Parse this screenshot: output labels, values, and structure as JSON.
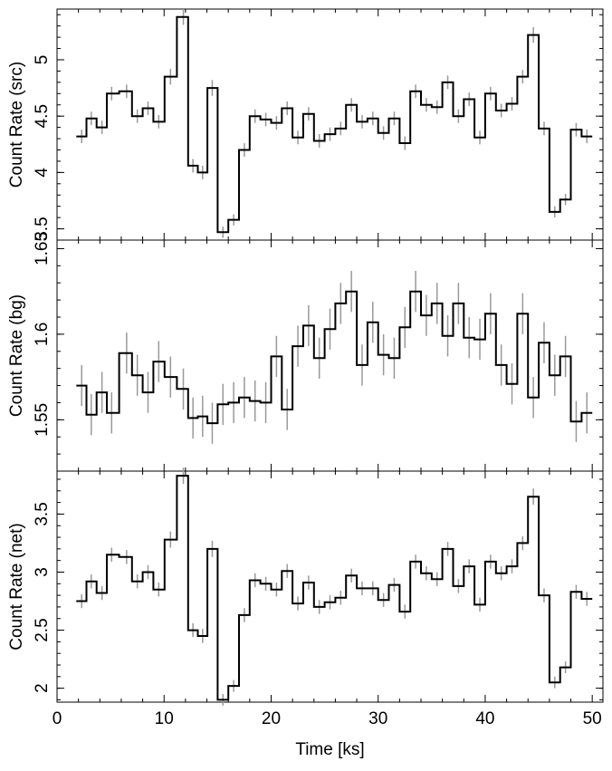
{
  "chart_data": {
    "type": "line",
    "style": "step histogram with error bars",
    "xlabel": "Time [ks]",
    "xlim": [
      0,
      51
    ],
    "xticks": [
      0,
      10,
      20,
      30,
      40,
      50
    ],
    "shared_x_bin_centers": [
      2.3,
      3.2,
      4.2,
      5.1,
      6.5,
      7.5,
      8.5,
      9.5,
      10.6,
      11.8,
      12.7,
      13.6,
      14.5,
      15.5,
      16.5,
      17.5,
      18.5,
      19.5,
      20.5,
      21.5,
      22.5,
      23.5,
      24.5,
      25.5,
      26.5,
      27.5,
      28.5,
      29.5,
      30.5,
      31.5,
      32.5,
      33.5,
      34.5,
      35.5,
      36.5,
      37.5,
      38.5,
      39.5,
      40.5,
      41.5,
      42.5,
      43.5,
      44.5,
      45.5,
      46.5,
      47.5,
      48.5,
      49.5
    ],
    "panels": [
      {
        "ylabel": "Count Rate (src)",
        "ylim": [
          3.4,
          5.45
        ],
        "yticks": [
          3.5,
          4,
          4.5,
          5
        ],
        "values": [
          4.32,
          4.48,
          4.4,
          4.7,
          4.72,
          4.5,
          4.57,
          4.45,
          4.85,
          5.38,
          4.06,
          4.0,
          4.75,
          3.47,
          3.58,
          4.2,
          4.5,
          4.47,
          4.44,
          4.57,
          4.31,
          4.52,
          4.28,
          4.34,
          4.39,
          4.6,
          4.45,
          4.48,
          4.35,
          4.48,
          4.26,
          4.72,
          4.6,
          4.58,
          4.8,
          4.5,
          4.65,
          4.31,
          4.7,
          4.55,
          4.61,
          4.85,
          5.22,
          4.39,
          3.65,
          3.76,
          4.38,
          4.32
        ],
        "errors": [
          0.06,
          0.06,
          0.06,
          0.06,
          0.06,
          0.06,
          0.06,
          0.06,
          0.07,
          0.07,
          0.06,
          0.06,
          0.07,
          0.05,
          0.05,
          0.06,
          0.06,
          0.06,
          0.06,
          0.06,
          0.06,
          0.06,
          0.06,
          0.06,
          0.06,
          0.06,
          0.06,
          0.06,
          0.06,
          0.06,
          0.06,
          0.06,
          0.06,
          0.06,
          0.06,
          0.06,
          0.06,
          0.06,
          0.06,
          0.06,
          0.06,
          0.06,
          0.07,
          0.06,
          0.05,
          0.05,
          0.06,
          0.06
        ]
      },
      {
        "ylabel": "Count Rate (bg)",
        "ylim": [
          1.52,
          1.655
        ],
        "yticks": [
          1.55,
          1.6,
          1.65
        ],
        "values": [
          1.57,
          1.553,
          1.566,
          1.554,
          1.589,
          1.576,
          1.566,
          1.584,
          1.575,
          1.568,
          1.551,
          1.552,
          1.548,
          1.559,
          1.56,
          1.563,
          1.561,
          1.56,
          1.587,
          1.556,
          1.593,
          1.605,
          1.586,
          1.603,
          1.618,
          1.625,
          1.582,
          1.607,
          1.588,
          1.586,
          1.604,
          1.625,
          1.611,
          1.618,
          1.599,
          1.618,
          1.598,
          1.597,
          1.612,
          1.582,
          1.571,
          1.612,
          1.563,
          1.595,
          1.576,
          1.587,
          1.549,
          1.554
        ],
        "errors": [
          0.012,
          0.012,
          0.012,
          0.012,
          0.012,
          0.012,
          0.012,
          0.012,
          0.012,
          0.012,
          0.012,
          0.012,
          0.012,
          0.012,
          0.012,
          0.012,
          0.012,
          0.012,
          0.012,
          0.012,
          0.012,
          0.012,
          0.012,
          0.012,
          0.012,
          0.012,
          0.012,
          0.012,
          0.012,
          0.012,
          0.012,
          0.012,
          0.012,
          0.012,
          0.012,
          0.012,
          0.012,
          0.012,
          0.012,
          0.012,
          0.012,
          0.012,
          0.012,
          0.012,
          0.012,
          0.012,
          0.012,
          0.012
        ]
      },
      {
        "ylabel": "Count Rate (net)",
        "ylim": [
          1.88,
          3.87
        ],
        "yticks": [
          2,
          2.5,
          3,
          3.5
        ],
        "values": [
          2.75,
          2.92,
          2.82,
          3.15,
          3.13,
          2.92,
          3.0,
          2.85,
          3.28,
          3.83,
          2.5,
          2.45,
          3.2,
          1.9,
          2.02,
          2.63,
          2.93,
          2.9,
          2.85,
          3.01,
          2.73,
          2.91,
          2.7,
          2.74,
          2.78,
          2.97,
          2.86,
          2.86,
          2.76,
          2.89,
          2.66,
          3.09,
          2.99,
          2.94,
          3.2,
          2.88,
          3.05,
          2.72,
          3.09,
          2.99,
          3.05,
          3.25,
          3.65,
          2.8,
          2.05,
          2.18,
          2.83,
          2.77
        ],
        "errors": [
          0.06,
          0.06,
          0.06,
          0.06,
          0.06,
          0.06,
          0.06,
          0.06,
          0.07,
          0.07,
          0.06,
          0.06,
          0.07,
          0.05,
          0.05,
          0.06,
          0.06,
          0.06,
          0.06,
          0.06,
          0.06,
          0.06,
          0.06,
          0.06,
          0.06,
          0.06,
          0.06,
          0.06,
          0.06,
          0.06,
          0.06,
          0.06,
          0.06,
          0.06,
          0.06,
          0.06,
          0.06,
          0.06,
          0.06,
          0.06,
          0.06,
          0.06,
          0.07,
          0.06,
          0.05,
          0.05,
          0.06,
          0.06
        ]
      }
    ],
    "colors": {
      "step_line": "#000000",
      "error_bars": "#999999",
      "frame": "#000000"
    },
    "grid": false,
    "legend": "none"
  }
}
